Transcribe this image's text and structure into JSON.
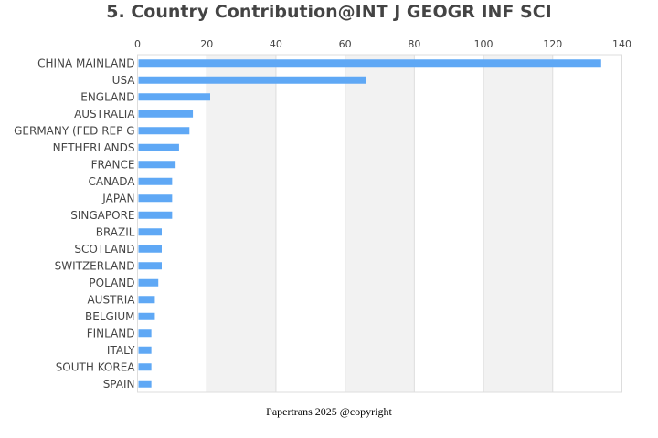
{
  "chart_data": {
    "type": "bar",
    "orientation": "horizontal",
    "title": "5. Country Contribution@INT J GEOGR INF SCI",
    "xlabel": "",
    "ylabel": "",
    "xlim": [
      0,
      140
    ],
    "xticks": [
      0,
      20,
      40,
      60,
      80,
      100,
      120,
      140
    ],
    "categories": [
      "CHINA MAINLAND",
      "USA",
      "ENGLAND",
      "AUSTRALIA",
      "GERMANY (FED REP G",
      "NETHERLANDS",
      "FRANCE",
      "CANADA",
      "JAPAN",
      "SINGAPORE",
      "BRAZIL",
      "SCOTLAND",
      "SWITZERLAND",
      "POLAND",
      "AUSTRIA",
      "BELGIUM",
      "FINLAND",
      "ITALY",
      "SOUTH KOREA",
      "SPAIN"
    ],
    "values": [
      134,
      66,
      21,
      16,
      15,
      12,
      11,
      10,
      10,
      10,
      7,
      7,
      7,
      6,
      5,
      5,
      4,
      4,
      4,
      4
    ],
    "bar_color": "#5fa8f5",
    "band_color": "#f2f2f2",
    "grid": true,
    "legend": "none"
  },
  "footer": "Papertrans 2025 @copyright"
}
